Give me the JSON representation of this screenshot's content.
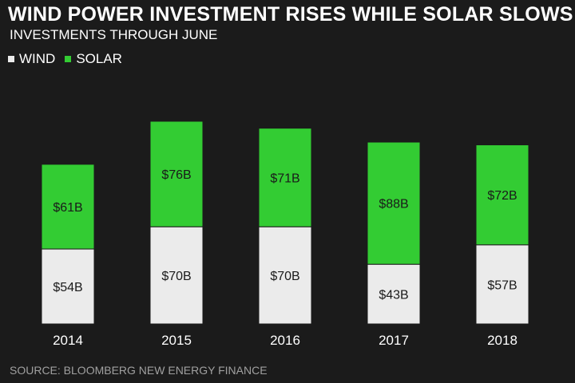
{
  "chart_data": {
    "type": "bar",
    "stacked": true,
    "title": "WIND POWER INVESTMENT RISES WHILE SOLAR SLOWS",
    "subtitle": "INVESTMENTS  THROUGH JUNE",
    "categories": [
      "2014",
      "2015",
      "2016",
      "2017",
      "2018"
    ],
    "series": [
      {
        "name": "WIND",
        "color": "#ebebeb",
        "values": [
          54,
          70,
          70,
          43,
          57
        ],
        "labels": [
          "$54B",
          "$70B",
          "$70B",
          "$43B",
          "$57B"
        ]
      },
      {
        "name": "SOLAR",
        "color": "#33cc33",
        "values": [
          61,
          76,
          71,
          88,
          72
        ],
        "labels": [
          "$61B",
          "$76B",
          "$71B",
          "$88B",
          "$72B"
        ]
      }
    ],
    "legend_position": "top-left",
    "grid": false,
    "source": "SOURCE: BLOOMBERG NEW ENERGY FINANCE"
  }
}
